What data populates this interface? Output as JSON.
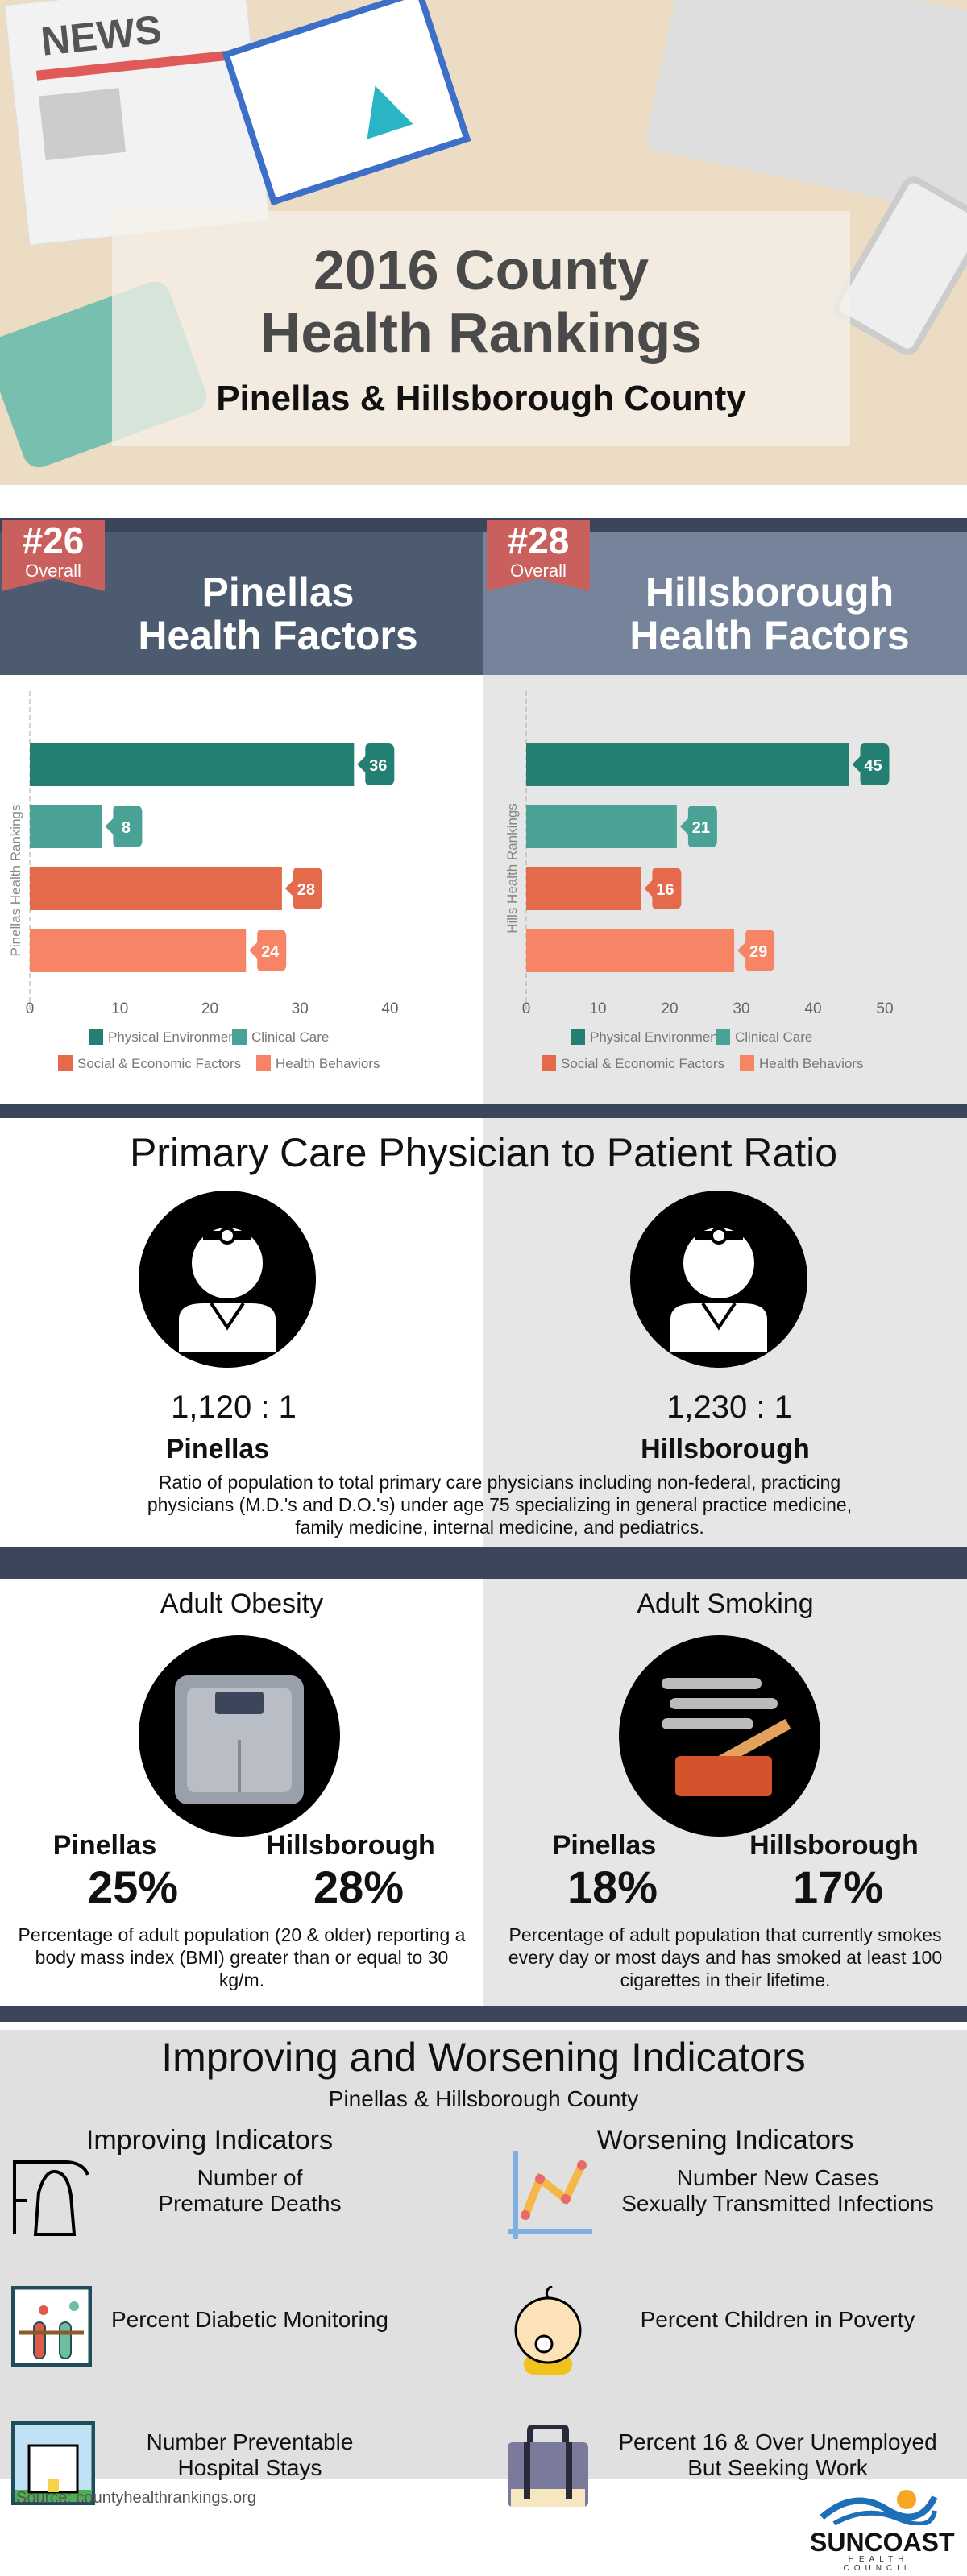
{
  "hero": {
    "news_label": "NEWS",
    "title_line1": "2016 County",
    "title_line2": "Health Rankings",
    "subtitle": "Pinellas & Hillsborough County"
  },
  "pinellas": {
    "rank": "#26",
    "rank_label": "Overall",
    "title_line1": "Pinellas",
    "title_line2": "Health Factors"
  },
  "hillsborough": {
    "rank": "#28",
    "rank_label": "Overall",
    "title_line1": "Hillsborough",
    "title_line2": "Health Factors"
  },
  "chart_data": [
    {
      "type": "bar",
      "orientation": "horizontal",
      "ylabel": "Pinellas Health Rankings",
      "xlim": [
        0,
        40
      ],
      "xticks": [
        0,
        10,
        20,
        30,
        40
      ],
      "categories": [
        "Physical Environment",
        "Clinical Care",
        "Social & Economic Factors",
        "Health Behaviors"
      ],
      "values": [
        36,
        8,
        28,
        24
      ],
      "colors": [
        "#227f72",
        "#4aa297",
        "#e5694b",
        "#f88466"
      ],
      "legend": "bottom"
    },
    {
      "type": "bar",
      "orientation": "horizontal",
      "ylabel": "Hills Health Rankings",
      "xlim": [
        0,
        50
      ],
      "xticks": [
        0,
        10,
        20,
        30,
        40,
        50
      ],
      "categories": [
        "Physical Environment",
        "Clinical Care",
        "Social & Economic Factors",
        "Health Behaviors"
      ],
      "values": [
        45,
        21,
        16,
        29
      ],
      "colors": [
        "#227f72",
        "#4aa297",
        "#e5694b",
        "#f88466"
      ],
      "legend": "bottom"
    }
  ],
  "physician": {
    "title": "Primary Care Physician to Patient Ratio",
    "pinellas_ratio": "1,120 : 1",
    "pinellas_label": "Pinellas",
    "hills_ratio": "1,230 : 1",
    "hills_label": "Hillsborough",
    "description": "Ratio of population to total primary care physicians including non-federal, practicing physicians (M.D.'s and D.O.'s) under age 75 specializing in general practice medicine, family medicine, internal medicine, and pediatrics."
  },
  "obesity": {
    "title": "Adult Obesity",
    "pinellas_label": "Pinellas",
    "pinellas_value": "25%",
    "hills_label": "Hillsborough",
    "hills_value": "28%",
    "description": "Percentage of adult population (20 & older) reporting a body mass index (BMI) greater than or equal to 30 kg/m."
  },
  "smoking": {
    "title": "Adult Smoking",
    "pinellas_label": "Pinellas",
    "pinellas_value": "18%",
    "hills_label": "Hillsborough",
    "hills_value": "17%",
    "description": "Percentage of adult population that currently smokes every day or most days and has smoked at least 100 cigarettes in their lifetime."
  },
  "indicators": {
    "title": "Improving and Worsening Indicators",
    "subtitle": "Pinellas & Hillsborough County",
    "improving_title": "Improving Indicators",
    "worsening_title": "Worsening Indicators",
    "improving": [
      "Number of\nPremature Deaths",
      "Percent Diabetic Monitoring",
      "Number Preventable\nHospital Stays"
    ],
    "worsening": [
      "Number New Cases\nSexually Transmitted Infections",
      "Percent Children in Poverty",
      "Percent 16 & Over Unemployed\nBut Seeking Work"
    ]
  },
  "footer": {
    "source": "Source: countyhealthrankings.org",
    "logo_text": "SUNCOAST",
    "logo_subtext": "HEALTH COUNCIL"
  }
}
